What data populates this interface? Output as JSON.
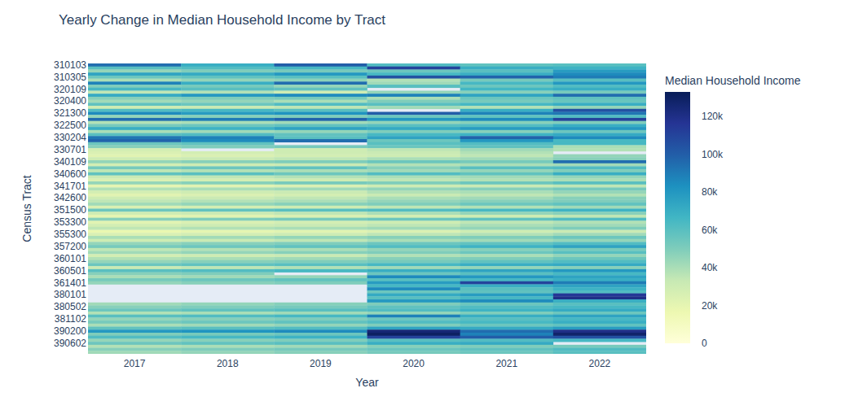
{
  "chart_data": {
    "type": "heatmap",
    "title": "Yearly Change in Median Household Income by Tract",
    "x_label": "Year",
    "y_label": "Census Tract",
    "colorbar_title": "Median Household Income",
    "x": [
      "2017",
      "2018",
      "2019",
      "2020",
      "2021",
      "2022"
    ],
    "categories": [
      "310103",
      null,
      null,
      null,
      "310305",
      null,
      null,
      null,
      "320109",
      null,
      null,
      null,
      "320400",
      null,
      null,
      null,
      "321300",
      null,
      null,
      null,
      "322500",
      null,
      null,
      null,
      "330204",
      null,
      null,
      null,
      "330701",
      null,
      null,
      null,
      "340109",
      null,
      null,
      null,
      "340600",
      null,
      null,
      null,
      "341701",
      null,
      null,
      null,
      "342600",
      null,
      null,
      null,
      "351500",
      null,
      null,
      null,
      "353300",
      null,
      null,
      null,
      "355300",
      null,
      null,
      null,
      "357200",
      null,
      null,
      null,
      "360101",
      null,
      null,
      null,
      "360501",
      null,
      null,
      null,
      "361401",
      null,
      null,
      null,
      "380101",
      null,
      null,
      null,
      "380502",
      null,
      null,
      null,
      "381102",
      null,
      null,
      null,
      "390200",
      null,
      null,
      null,
      "390602",
      null,
      null,
      null
    ],
    "z": [
      [
        95000,
        70000,
        100000,
        62000,
        58000,
        60000
      ],
      [
        60000,
        62000,
        65000,
        110000,
        70000,
        68000
      ],
      [
        45000,
        50000,
        52000,
        55000,
        60000,
        78000
      ],
      [
        75000,
        72000,
        80000,
        65000,
        70000,
        85000
      ],
      [
        55000,
        58000,
        60000,
        105000,
        98000,
        90000
      ],
      [
        40000,
        45000,
        47000,
        38000,
        52000,
        60000
      ],
      [
        88000,
        70000,
        95000,
        42000,
        65000,
        80000
      ],
      [
        50000,
        52000,
        45000,
        60000,
        55000,
        62000
      ],
      [
        65000,
        60000,
        58000,
        null,
        66000,
        70000
      ],
      [
        35000,
        38000,
        30000,
        45000,
        48000,
        52000
      ],
      [
        72000,
        80000,
        85000,
        88000,
        75000,
        95000
      ],
      [
        48000,
        50000,
        52000,
        40000,
        55000,
        58000
      ],
      [
        42000,
        45000,
        40000,
        50000,
        52000,
        56000
      ],
      [
        58000,
        55000,
        62000,
        60000,
        65000,
        70000
      ],
      [
        30000,
        32000,
        35000,
        42000,
        38000,
        45000
      ],
      [
        62000,
        65000,
        60000,
        null,
        70000,
        105000
      ],
      [
        85000,
        78000,
        82000,
        100000,
        88000,
        92000
      ],
      [
        45000,
        48000,
        50000,
        55000,
        58000,
        62000
      ],
      [
        95000,
        90000,
        98000,
        80000,
        85000,
        110000
      ],
      [
        38000,
        40000,
        42000,
        45000,
        48000,
        50000
      ],
      [
        52000,
        55000,
        58000,
        60000,
        62000,
        70000
      ],
      [
        70000,
        68000,
        75000,
        72000,
        78000,
        80000
      ],
      [
        40000,
        42000,
        45000,
        50000,
        48000,
        55000
      ],
      [
        60000,
        62000,
        58000,
        65000,
        68000,
        72000
      ],
      [
        92000,
        88000,
        60000,
        75000,
        98000,
        85000
      ],
      [
        98000,
        85000,
        95000,
        55000,
        80000,
        65000
      ],
      [
        55000,
        58000,
        null,
        60000,
        62000,
        65000
      ],
      [
        48000,
        50000,
        52000,
        55000,
        58000,
        40000
      ],
      [
        28000,
        null,
        30000,
        35000,
        42000,
        38000
      ],
      [
        25000,
        28000,
        30000,
        32000,
        38000,
        null
      ],
      [
        22000,
        25000,
        28000,
        30000,
        35000,
        45000
      ],
      [
        30000,
        32000,
        35000,
        40000,
        42000,
        48000
      ],
      [
        45000,
        48000,
        50000,
        55000,
        52000,
        95000
      ],
      [
        28000,
        30000,
        32000,
        38000,
        40000,
        42000
      ],
      [
        52000,
        55000,
        58000,
        48000,
        60000,
        62000
      ],
      [
        35000,
        38000,
        40000,
        42000,
        45000,
        50000
      ],
      [
        58000,
        60000,
        55000,
        62000,
        58000,
        70000
      ],
      [
        32000,
        35000,
        38000,
        40000,
        42000,
        45000
      ],
      [
        25000,
        28000,
        30000,
        35000,
        38000,
        40000
      ],
      [
        45000,
        48000,
        52000,
        50000,
        55000,
        60000
      ],
      [
        20000,
        22000,
        25000,
        30000,
        32000,
        35000
      ],
      [
        38000,
        40000,
        42000,
        45000,
        48000,
        52000
      ],
      [
        28000,
        30000,
        32000,
        38000,
        40000,
        45000
      ],
      [
        22000,
        25000,
        28000,
        32000,
        35000,
        38000
      ],
      [
        30000,
        32000,
        35000,
        40000,
        42000,
        48000
      ],
      [
        35000,
        38000,
        40000,
        45000,
        48000,
        50000
      ],
      [
        42000,
        45000,
        48000,
        50000,
        55000,
        58000
      ],
      [
        25000,
        28000,
        30000,
        35000,
        38000,
        42000
      ],
      [
        55000,
        58000,
        60000,
        62000,
        65000,
        68000
      ],
      [
        30000,
        32000,
        35000,
        40000,
        45000,
        48000
      ],
      [
        20000,
        22000,
        25000,
        28000,
        30000,
        35000
      ],
      [
        48000,
        50000,
        52000,
        55000,
        58000,
        62000
      ],
      [
        22000,
        25000,
        28000,
        30000,
        35000,
        38000
      ],
      [
        28000,
        30000,
        32000,
        35000,
        40000,
        42000
      ],
      [
        35000,
        38000,
        40000,
        42000,
        45000,
        50000
      ],
      [
        18000,
        20000,
        22000,
        25000,
        30000,
        32000
      ],
      [
        25000,
        28000,
        30000,
        35000,
        38000,
        42000
      ],
      [
        40000,
        42000,
        45000,
        48000,
        50000,
        55000
      ],
      [
        30000,
        32000,
        35000,
        40000,
        42000,
        45000
      ],
      [
        45000,
        48000,
        50000,
        55000,
        58000,
        62000
      ],
      [
        52000,
        55000,
        58000,
        62000,
        68000,
        75000
      ],
      [
        35000,
        38000,
        40000,
        45000,
        48000,
        52000
      ],
      [
        42000,
        45000,
        48000,
        50000,
        55000,
        60000
      ],
      [
        28000,
        30000,
        32000,
        38000,
        40000,
        45000
      ],
      [
        38000,
        40000,
        42000,
        48000,
        50000,
        55000
      ],
      [
        45000,
        48000,
        50000,
        52000,
        58000,
        62000
      ],
      [
        55000,
        58000,
        60000,
        65000,
        70000,
        72000
      ],
      [
        32000,
        35000,
        38000,
        42000,
        45000,
        48000
      ],
      [
        60000,
        62000,
        65000,
        70000,
        75000,
        80000
      ],
      [
        48000,
        50000,
        null,
        55000,
        60000,
        65000
      ],
      [
        40000,
        42000,
        45000,
        85000,
        80000,
        75000
      ],
      [
        52000,
        55000,
        58000,
        60000,
        65000,
        70000
      ],
      [
        45000,
        48000,
        50000,
        78000,
        110000,
        90000
      ],
      [
        null,
        null,
        null,
        65000,
        70000,
        75000
      ],
      [
        null,
        null,
        null,
        85000,
        60000,
        68000
      ],
      [
        null,
        null,
        null,
        55000,
        58000,
        62000
      ],
      [
        null,
        null,
        null,
        72000,
        78000,
        115000
      ],
      [
        null,
        null,
        null,
        60000,
        65000,
        120000
      ],
      [
        null,
        null,
        null,
        80000,
        85000,
        70000
      ],
      [
        42000,
        45000,
        48000,
        50000,
        55000,
        60000
      ],
      [
        48000,
        50000,
        52000,
        58000,
        62000,
        65000
      ],
      [
        55000,
        58000,
        60000,
        62000,
        68000,
        72000
      ],
      [
        38000,
        40000,
        42000,
        45000,
        50000,
        55000
      ],
      [
        60000,
        62000,
        65000,
        88000,
        70000,
        75000
      ],
      [
        45000,
        48000,
        50000,
        55000,
        60000,
        65000
      ],
      [
        52000,
        55000,
        58000,
        62000,
        65000,
        70000
      ],
      [
        40000,
        42000,
        45000,
        50000,
        55000,
        58000
      ],
      [
        58000,
        60000,
        62000,
        75000,
        72000,
        78000
      ],
      [
        80000,
        82000,
        85000,
        125000,
        95000,
        120000
      ],
      [
        50000,
        52000,
        55000,
        130000,
        88000,
        128000
      ],
      [
        62000,
        65000,
        68000,
        110000,
        100000,
        105000
      ],
      [
        45000,
        48000,
        50000,
        60000,
        62000,
        65000
      ],
      [
        55000,
        58000,
        60000,
        70000,
        72000,
        null
      ],
      [
        38000,
        40000,
        42000,
        48000,
        50000,
        52000
      ],
      [
        48000,
        50000,
        52000,
        55000,
        58000,
        62000
      ],
      [
        42000,
        45000,
        48000,
        52000,
        55000,
        60000
      ]
    ],
    "zlim": [
      0,
      133000
    ],
    "zticks": [
      0,
      {
        "value": 20000,
        "label": "20k"
      },
      {
        "value": 40000,
        "label": "40k"
      },
      {
        "value": 60000,
        "label": "60k"
      },
      {
        "value": 80000,
        "label": "80k"
      },
      {
        "value": 100000,
        "label": "100k"
      },
      {
        "value": 120000,
        "label": "120k"
      }
    ]
  }
}
